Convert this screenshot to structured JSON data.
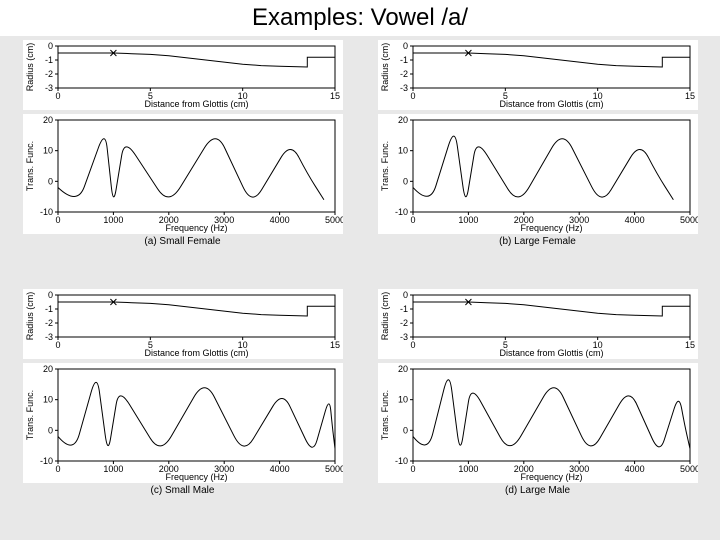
{
  "page_title": "Examples: Vowel /a/",
  "background": "#e8e8e8",
  "axis_color": "#000000",
  "curve_color": "#000000",
  "panel_bg": "#ffffff",
  "radius": {
    "ylabel": "Radius (cm)",
    "xlabel": "Distance from Glottis (cm)",
    "ylim": [
      -3,
      0
    ],
    "yticks": [
      0,
      -1,
      -2,
      -3
    ],
    "xlim": [
      0,
      15
    ],
    "xticks": [
      0,
      5,
      10,
      15
    ],
    "marker_x": 3,
    "marker_y": -0.5,
    "series": [
      {
        "x": 0,
        "y": -0.5
      },
      {
        "x": 1,
        "y": -0.5
      },
      {
        "x": 2,
        "y": -0.5
      },
      {
        "x": 3,
        "y": -0.5
      },
      {
        "x": 4,
        "y": -0.55
      },
      {
        "x": 5,
        "y": -0.6
      },
      {
        "x": 6,
        "y": -0.7
      },
      {
        "x": 7,
        "y": -0.85
      },
      {
        "x": 8,
        "y": -1.0
      },
      {
        "x": 9,
        "y": -1.15
      },
      {
        "x": 10,
        "y": -1.3
      },
      {
        "x": 11,
        "y": -1.4
      },
      {
        "x": 12,
        "y": -1.45
      },
      {
        "x": 13,
        "y": -1.48
      },
      {
        "x": 13.5,
        "y": -1.5
      },
      {
        "x": 13.5,
        "y": -0.8
      },
      {
        "x": 15,
        "y": -0.8
      }
    ]
  },
  "trans": {
    "ylabel": "Trans. Func.",
    "xlabel": "Frequency (Hz)",
    "ylim": [
      -10,
      20
    ],
    "yticks": [
      20,
      10,
      0,
      -10
    ],
    "xlim": [
      0,
      5000
    ],
    "xticks": [
      0,
      1000,
      2000,
      3000,
      4000,
      5000
    ]
  },
  "panels": [
    {
      "caption": "(a) Small Female",
      "peaks": [
        850,
        1200,
        2850,
        4200
      ],
      "valleys": [
        350,
        1000,
        2000,
        3500,
        4800
      ],
      "peakh": [
        17,
        14,
        17,
        13
      ]
    },
    {
      "caption": "(b) Large Female",
      "peaks": [
        750,
        1150,
        2700,
        4100
      ],
      "valleys": [
        300,
        950,
        1900,
        3400,
        4700
      ],
      "peakh": [
        18,
        14,
        17,
        13
      ]
    },
    {
      "caption": "(c) Small Male",
      "peaks": [
        700,
        1100,
        2650,
        4050,
        4900
      ],
      "valleys": [
        280,
        900,
        1850,
        3350,
        4600,
        5000
      ],
      "peakh": [
        19,
        14,
        17,
        13,
        11
      ]
    },
    {
      "caption": "(d) Large Male",
      "peaks": [
        650,
        1050,
        2550,
        3900,
        4800
      ],
      "valleys": [
        260,
        850,
        1750,
        3200,
        4450,
        5000
      ],
      "peakh": [
        20,
        15,
        17,
        14,
        12
      ]
    }
  ],
  "radius_w": 320,
  "radius_h": 70,
  "trans_w": 320,
  "trans_h": 120,
  "margin": {
    "l": 35,
    "r": 8,
    "t": 6,
    "b": 22
  }
}
